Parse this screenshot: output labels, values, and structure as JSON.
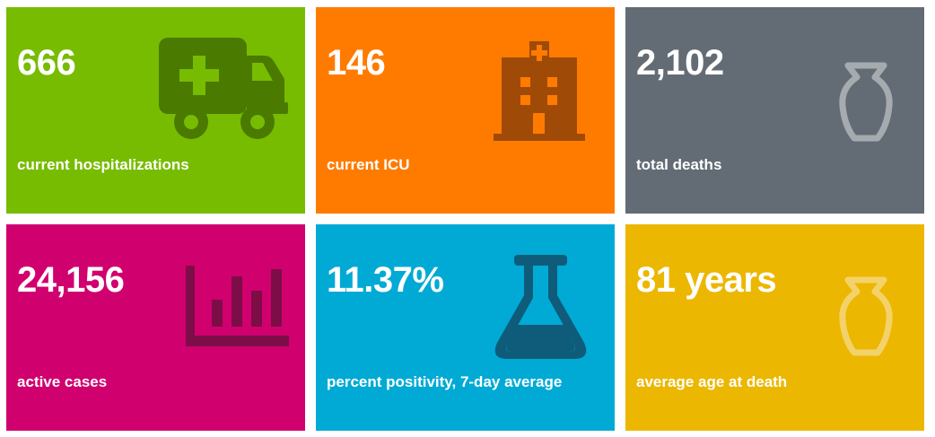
{
  "tiles": [
    {
      "value": "666",
      "label": "current hospitalizations",
      "bg": "#77bc00",
      "icon": "ambulance-icon",
      "icon_color": "#4a7a00"
    },
    {
      "value": "146",
      "label": "current ICU",
      "bg": "#ff7b00",
      "icon": "hospital-icon",
      "icon_color": "#a04a08"
    },
    {
      "value": "2,102",
      "label": "total deaths",
      "bg": "#636c75",
      "icon": "urn-icon",
      "icon_color": "#a6abb0"
    },
    {
      "value": "24,156",
      "label": "active cases",
      "bg": "#d0006f",
      "icon": "bar-chart-icon",
      "icon_color": "#7d0d47"
    },
    {
      "value": "11.37%",
      "label": "percent positivity, 7-day average",
      "bg": "#00aad5",
      "icon": "flask-icon",
      "icon_color": "#0e5c7a"
    },
    {
      "value": "81 years",
      "label": "average age at death",
      "bg": "#ecb700",
      "icon": "urn-icon",
      "icon_color": "#f4d26a"
    }
  ]
}
